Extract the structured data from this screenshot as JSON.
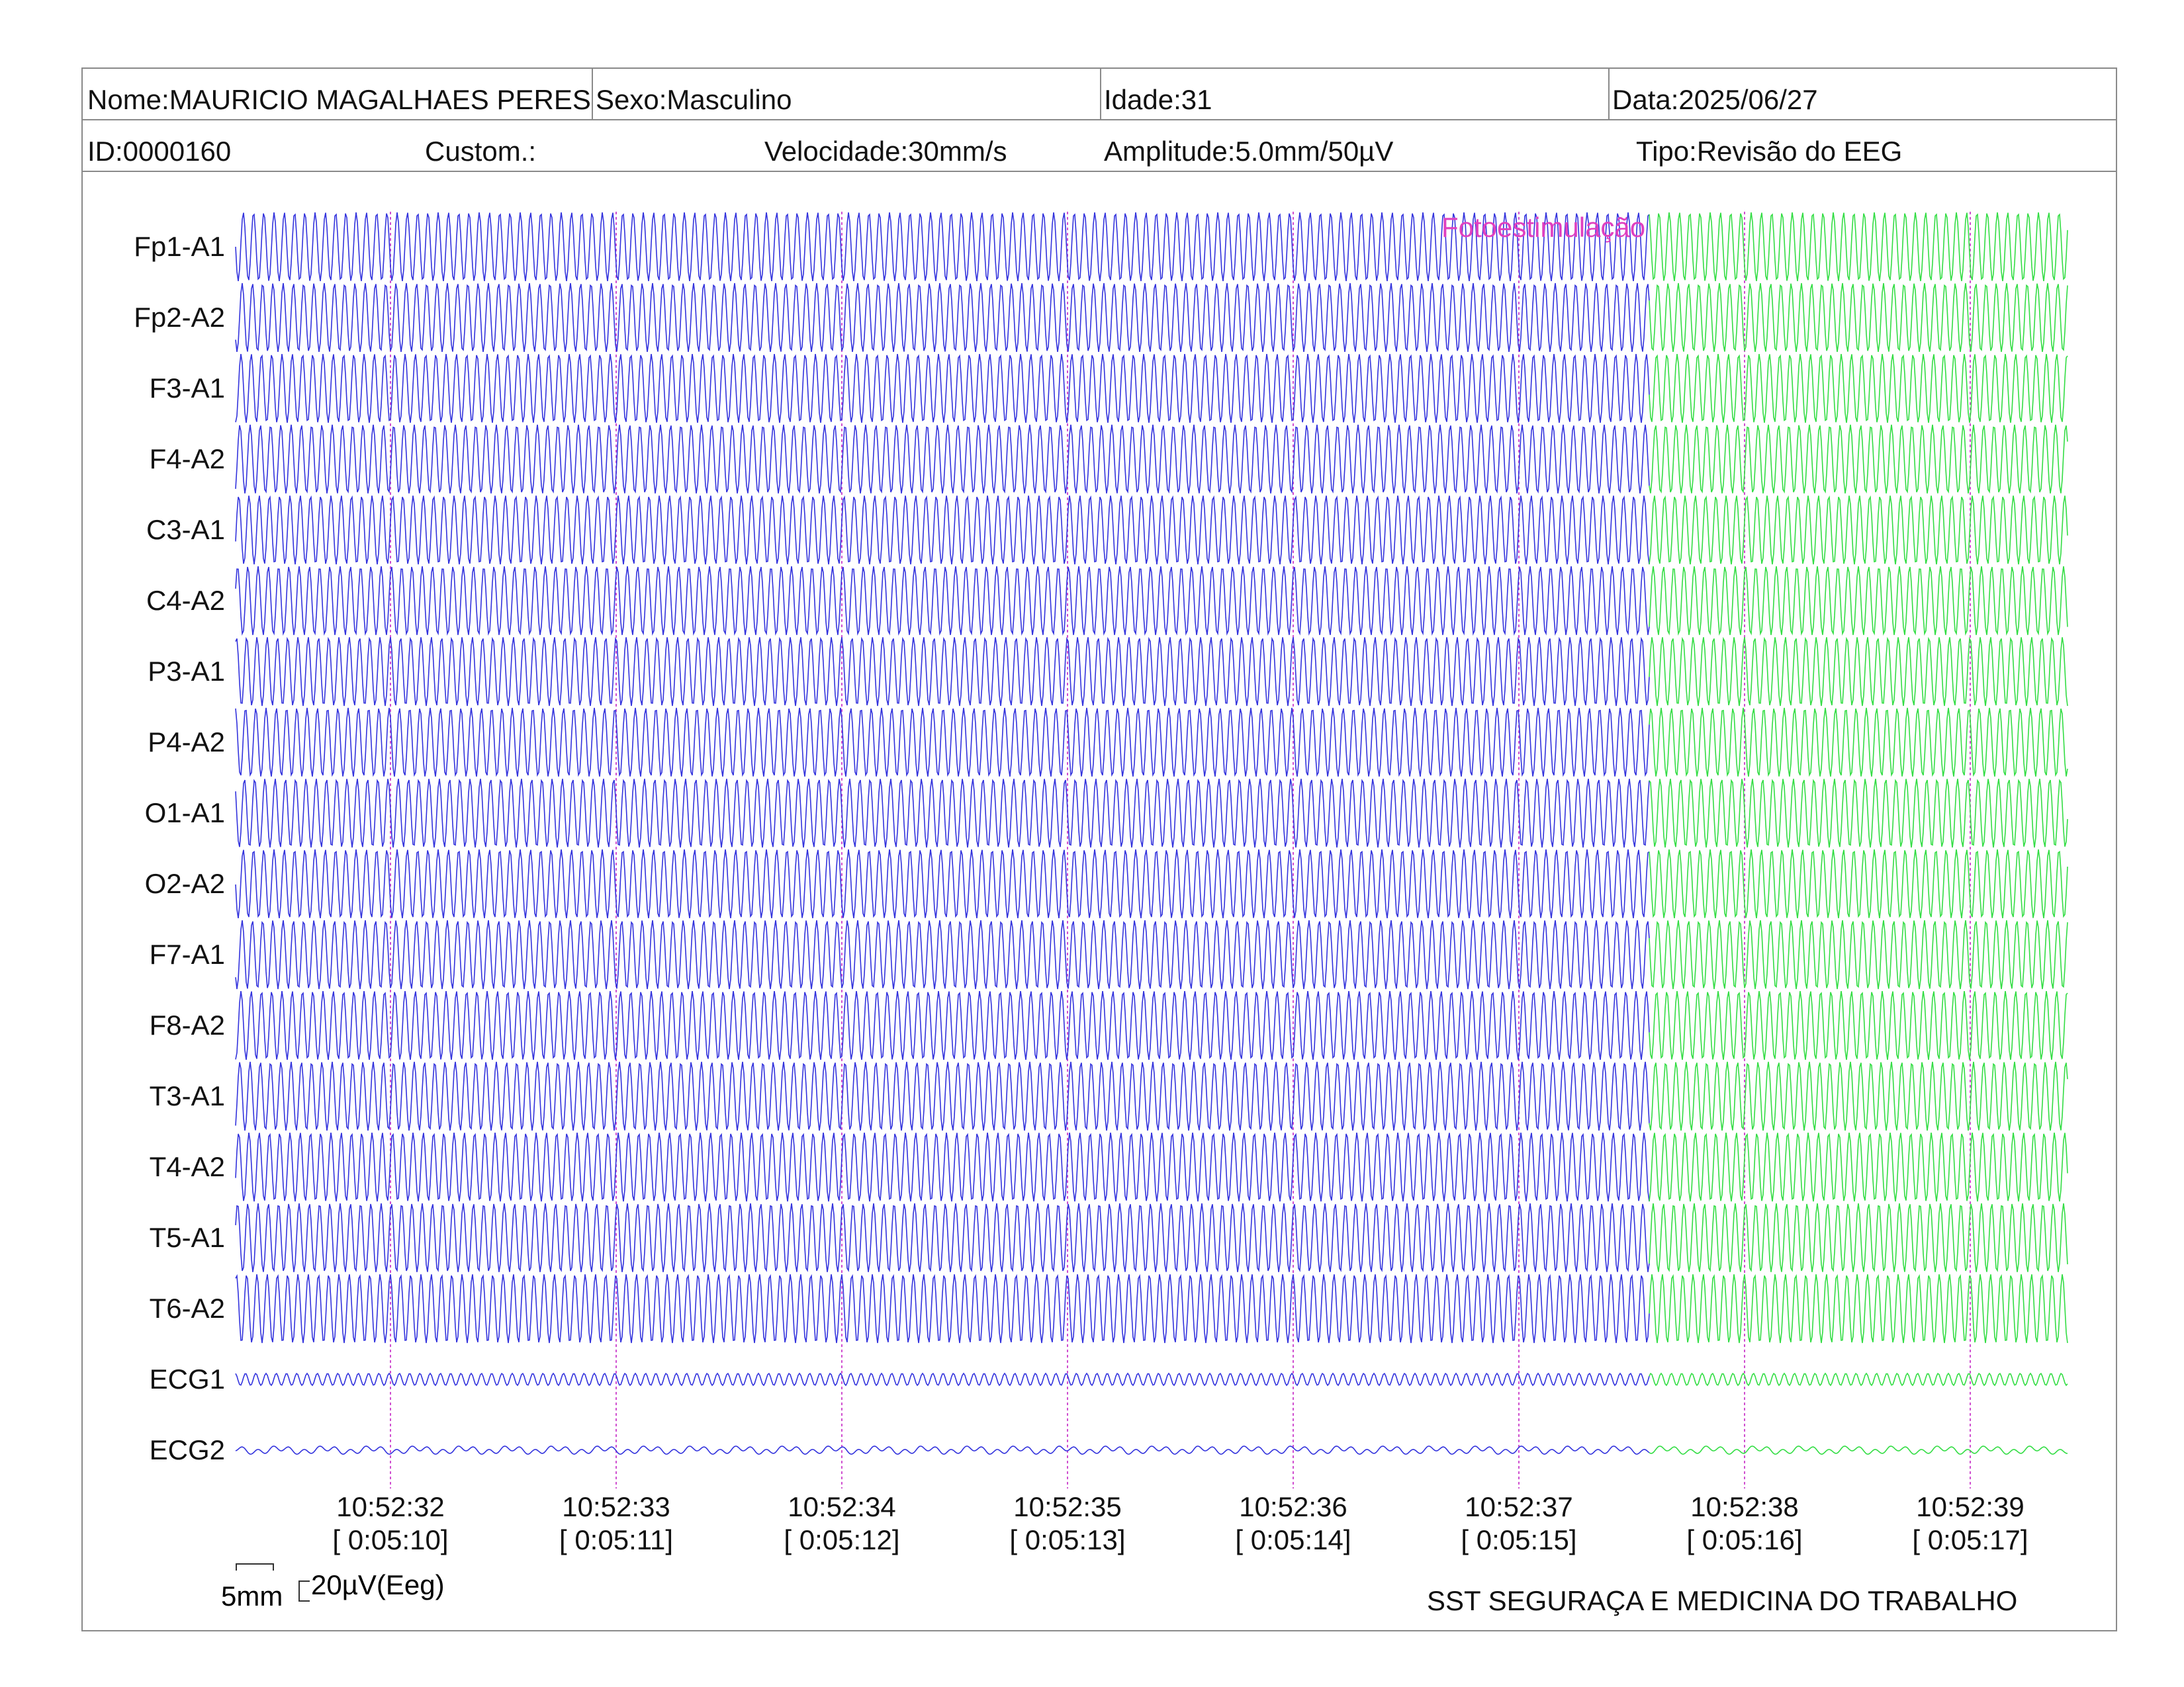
{
  "header": {
    "nome": "Nome:MAURICIO MAGALHAES PERES",
    "sexo": "Sexo:Masculino",
    "idade": "Idade:31",
    "data": "Data:2025/06/27",
    "id": "ID:0000160",
    "custom": "Custom.:",
    "velocidade": "Velocidade:30mm/s",
    "amplitude": "Amplitude:5.0mm/50µV",
    "tipo": "Tipo:Revisão do EEG"
  },
  "chart_data": {
    "type": "line",
    "channels": [
      "Fp1-A1",
      "Fp2-A2",
      "F3-A1",
      "F4-A2",
      "C3-A1",
      "C4-A2",
      "P3-A1",
      "P4-A2",
      "O1-A1",
      "O2-A2",
      "F7-A1",
      "F8-A2",
      "T3-A1",
      "T4-A2",
      "T5-A1",
      "T6-A2",
      "ECG1",
      "ECG2"
    ],
    "time_ticks": [
      {
        "time": "10:52:32",
        "elapsed": "[ 0:05:10]"
      },
      {
        "time": "10:52:33",
        "elapsed": "[ 0:05:11]"
      },
      {
        "time": "10:52:34",
        "elapsed": "[ 0:05:12]"
      },
      {
        "time": "10:52:35",
        "elapsed": "[ 0:05:13]"
      },
      {
        "time": "10:52:36",
        "elapsed": "[ 0:05:14]"
      },
      {
        "time": "10:52:37",
        "elapsed": "[ 0:05:15]"
      },
      {
        "time": "10:52:38",
        "elapsed": "[ 0:05:16]"
      },
      {
        "time": "10:52:39",
        "elapsed": "[ 0:05:17]"
      }
    ],
    "event_label": "Fotoestimulação",
    "event_start_seconds_before_last_tick": 1.42,
    "colors": {
      "baseline": "#3333dd",
      "photic": "#33dd44",
      "marker": "#d050d0",
      "event": "#e040c0"
    },
    "scale_bar_time": "5mm",
    "scale_bar_amplitude": "20µV(Eeg)"
  },
  "footer": {
    "company": "SST SEGURAÇA E MEDICINA DO TRABALHO"
  }
}
